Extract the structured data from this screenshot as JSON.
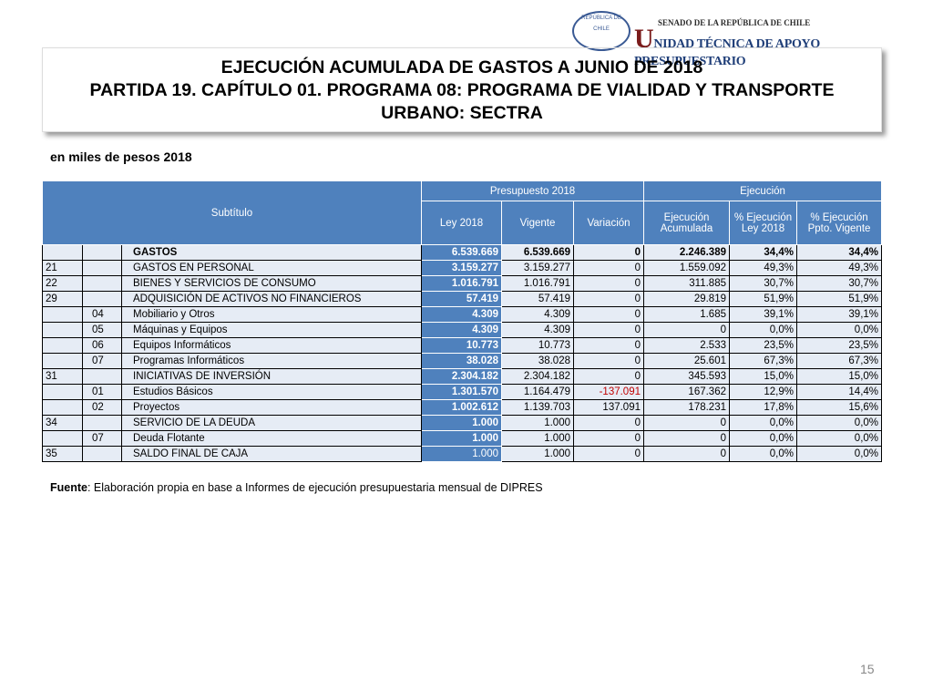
{
  "logo": {
    "seal": "REPÚBLICA DE CHILE",
    "line1": "SENADO DE LA REPÚBLICA DE CHILE",
    "line2": "UNIDAD TÉCNICA DE APOYO PRESUPUESTARIO"
  },
  "title": [
    "EJECUCIÓN ACUMULADA DE GASTOS A JUNIO DE 2018",
    "PARTIDA 19. CAPÍTULO 01. PROGRAMA 08: PROGRAMA DE VIALIDAD Y TRANSPORTE URBANO: SECTRA"
  ],
  "units": "en miles de pesos 2018",
  "table": {
    "header": {
      "subtitulo": "Subtítulo",
      "presupuesto": "Presupuesto 2018",
      "ejecucion": "Ejecución",
      "ley": "Ley 2018",
      "vigente": "Vigente",
      "variacion": "Variación",
      "ejec_acum": "Ejecución Acumulada",
      "pct_ley": "% Ejecución Ley 2018",
      "pct_vigente": "% Ejecución Ppto. Vigente"
    },
    "rows": [
      {
        "concepto": "GASTOS",
        "ley": "6.539.669",
        "vigente": "6.539.669",
        "variacion": "0",
        "ejec": "2.246.389",
        "pct_ley": "34,4%",
        "pct_vigente": "34,4%"
      },
      {
        "sub": "21",
        "concepto": "GASTOS EN PERSONAL",
        "ley": "3.159.277",
        "vigente": "3.159.277",
        "variacion": "0",
        "ejec": "1.559.092",
        "pct_ley": "49,3%",
        "pct_vigente": "49,3%"
      },
      {
        "sub": "22",
        "concepto": "BIENES Y SERVICIOS DE CONSUMO",
        "ley": "1.016.791",
        "vigente": "1.016.791",
        "variacion": "0",
        "ejec": "311.885",
        "pct_ley": "30,7%",
        "pct_vigente": "30,7%"
      },
      {
        "sub": "29",
        "concepto": "ADQUISICIÓN DE ACTIVOS NO FINANCIEROS",
        "ley": "57.419",
        "vigente": "57.419",
        "variacion": "0",
        "ejec": "29.819",
        "pct_ley": "51,9%",
        "pct_vigente": "51,9%"
      },
      {
        "item": "04",
        "concepto": "Mobiliario y Otros",
        "ley": "4.309",
        "vigente": "4.309",
        "variacion": "0",
        "ejec": "1.685",
        "pct_ley": "39,1%",
        "pct_vigente": "39,1%"
      },
      {
        "item": "05",
        "concepto": "Máquinas y Equipos",
        "ley": "4.309",
        "vigente": "4.309",
        "variacion": "0",
        "ejec": "0",
        "pct_ley": "0,0%",
        "pct_vigente": "0,0%"
      },
      {
        "item": "06",
        "concepto": "Equipos Informáticos",
        "ley": "10.773",
        "vigente": "10.773",
        "variacion": "0",
        "ejec": "2.533",
        "pct_ley": "23,5%",
        "pct_vigente": "23,5%"
      },
      {
        "item": "07",
        "concepto": "Programas Informáticos",
        "ley": "38.028",
        "vigente": "38.028",
        "variacion": "0",
        "ejec": "25.601",
        "pct_ley": "67,3%",
        "pct_vigente": "67,3%"
      },
      {
        "sub": "31",
        "concepto": "INICIATIVAS DE INVERSIÓN",
        "ley": "2.304.182",
        "vigente": "2.304.182",
        "variacion": "0",
        "ejec": "345.593",
        "pct_ley": "15,0%",
        "pct_vigente": "15,0%"
      },
      {
        "item": "01",
        "concepto": "Estudios Básicos",
        "ley": "1.301.570",
        "vigente": "1.164.479",
        "variacion": "-137.091",
        "ejec": "167.362",
        "pct_ley": "12,9%",
        "pct_vigente": "14,4%"
      },
      {
        "item": "02",
        "concepto": "Proyectos",
        "ley": "1.002.612",
        "vigente": "1.139.703",
        "variacion": "137.091",
        "ejec": "178.231",
        "pct_ley": "17,8%",
        "pct_vigente": "15,6%"
      },
      {
        "sub": "34",
        "concepto": "SERVICIO DE LA DEUDA",
        "ley": "1.000",
        "vigente": "1.000",
        "variacion": "0",
        "ejec": "0",
        "pct_ley": "0,0%",
        "pct_vigente": "0,0%"
      },
      {
        "item": "07",
        "concepto": "Deuda Flotante",
        "ley": "1.000",
        "vigente": "1.000",
        "variacion": "0",
        "ejec": "0",
        "pct_ley": "0,0%",
        "pct_vigente": "0,0%"
      },
      {
        "sub": "35",
        "concepto": "SALDO FINAL DE CAJA",
        "ley": "1.000",
        "vigente": "1.000",
        "variacion": "0",
        "ejec": "0",
        "pct_ley": "0,0%",
        "pct_vigente": "0,0%"
      }
    ]
  },
  "source": {
    "label": "Fuente",
    "text": ": Elaboración propia en base  a Informes de ejecución presupuestaria mensual de DIPRES"
  },
  "page_number": "15"
}
